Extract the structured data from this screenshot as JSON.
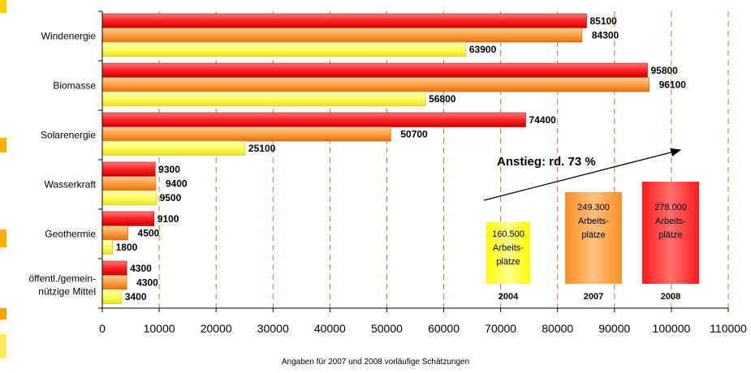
{
  "chart_data": {
    "type": "bar",
    "orientation": "horizontal",
    "categories": [
      "Windenergie",
      "Biomasse",
      "Solarenergie",
      "Wasserkraft",
      "Geothermie",
      "öffentl./gemein-\nnützige Mittel"
    ],
    "series": [
      {
        "name": "2008",
        "color": "#ff2a2a",
        "values": [
          85100,
          95800,
          74400,
          9300,
          9100,
          4300
        ]
      },
      {
        "name": "2007",
        "color": "#ffa040",
        "values": [
          84300,
          96100,
          50700,
          9400,
          4500,
          4300
        ]
      },
      {
        "name": "2004",
        "color": "#ffff66",
        "values": [
          63900,
          56800,
          25100,
          9500,
          1800,
          3400
        ]
      }
    ],
    "xlim": [
      0,
      110000
    ],
    "xticks": [
      0,
      10000,
      20000,
      30000,
      40000,
      50000,
      60000,
      70000,
      80000,
      90000,
      100000,
      110000
    ],
    "grid": "vertical-dashed",
    "annotation": {
      "text": "Anstieg: rd. 73 %"
    },
    "boxes": [
      {
        "year": "2004",
        "lines": [
          "160.500",
          "Arbeits-",
          "plätze"
        ],
        "color": "#ffff00"
      },
      {
        "year": "2007",
        "lines": [
          "249.300",
          "Arbeits-",
          "plätze"
        ],
        "color": "#ffa040"
      },
      {
        "year": "2008",
        "lines": [
          "278.000",
          "Arbeits-",
          "plätze"
        ],
        "color": "#ff2a2a"
      }
    ]
  },
  "footnote": "Angaben für 2007 und 2008 vorläufige Schätzungen"
}
